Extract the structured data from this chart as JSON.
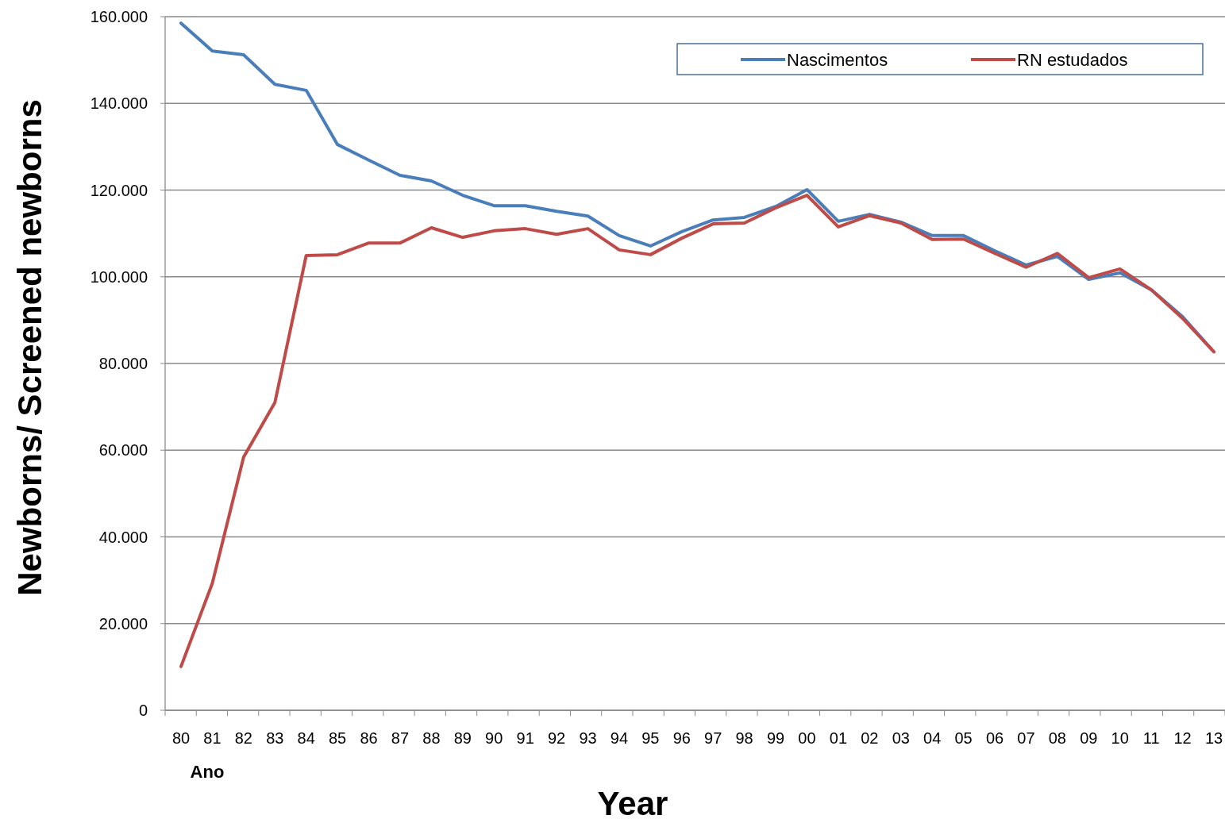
{
  "chart_data": {
    "type": "line",
    "xlabel": "Year",
    "ylabel": "Newborns/ Screened newborns",
    "annotations": [
      "Ano"
    ],
    "categories": [
      "80",
      "81",
      "82",
      "83",
      "84",
      "85",
      "86",
      "87",
      "88",
      "89",
      "90",
      "91",
      "92",
      "93",
      "94",
      "95",
      "96",
      "97",
      "98",
      "99",
      "00",
      "01",
      "02",
      "03",
      "04",
      "05",
      "06",
      "07",
      "08",
      "09",
      "10",
      "11",
      "12",
      "13"
    ],
    "series": [
      {
        "name": "Nascimentos",
        "color": "#4a7ebb",
        "values": [
          158500,
          152100,
          151200,
          144400,
          143000,
          130500,
          126900,
          123400,
          122100,
          118800,
          116400,
          116400,
          115100,
          114000,
          109500,
          107100,
          110400,
          113100,
          113700,
          116200,
          120100,
          112800,
          114400,
          112600,
          109500,
          109500,
          106000,
          102700,
          104700,
          99400,
          100900,
          97000,
          90800,
          82700
        ]
      },
      {
        "name": "RN estudados",
        "color": "#be4b48",
        "values": [
          10100,
          29300,
          58400,
          71000,
          104900,
          105100,
          107800,
          107800,
          111300,
          109100,
          110600,
          111100,
          109800,
          111100,
          106200,
          105100,
          108900,
          112200,
          112400,
          115900,
          118800,
          111500,
          114100,
          112400,
          108600,
          108700,
          105400,
          102200,
          105400,
          99800,
          101800,
          97000,
          90400,
          82700
        ]
      }
    ],
    "ylim": [
      0,
      160000
    ],
    "yticks": [
      {
        "value": 0,
        "label": "0"
      },
      {
        "value": 20000,
        "label": "20.000"
      },
      {
        "value": 40000,
        "label": "40.000"
      },
      {
        "value": 60000,
        "label": "60.000"
      },
      {
        "value": 80000,
        "label": "80.000"
      },
      {
        "value": 100000,
        "label": "100.000"
      },
      {
        "value": 120000,
        "label": "120.000"
      },
      {
        "value": 140000,
        "label": "140.000"
      },
      {
        "value": 160000,
        "label": "160.000"
      }
    ],
    "grid": "y",
    "legend": "top right",
    "marker": "none",
    "line_style": "solid"
  }
}
